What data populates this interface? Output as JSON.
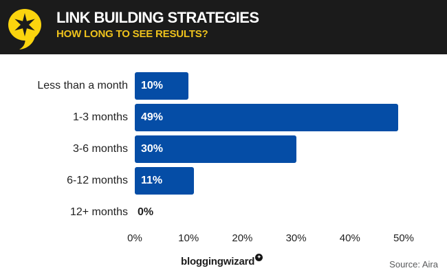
{
  "header": {
    "title": "LINK BUILDING STRATEGIES",
    "subtitle": "HOW LONG TO SEE RESULTS?"
  },
  "footer": {
    "wordmark": "bloggingwizard",
    "badge_icon": "✦",
    "source": "Source: Aira"
  },
  "icons": {
    "logo": "speech-bubble-starburst-logo",
    "badge": "star-badge"
  },
  "colors": {
    "header_bg": "#1b1b1b",
    "logo_yellow": "#fbd40e",
    "subtitle_yellow": "#eec21c",
    "bar_blue": "#054da6",
    "label_dark": "#1f1f1f",
    "value_white": "#ffffff",
    "source_gray": "#58595b",
    "background": "#ffffff"
  },
  "chart_data": {
    "type": "bar",
    "orientation": "horizontal",
    "title": "LINK BUILDING STRATEGIES",
    "subtitle": "HOW LONG TO SEE RESULTS?",
    "categories": [
      "Less than a month",
      "1-3 months",
      "3-6 months",
      "6-12 months",
      "12+ months"
    ],
    "values": [
      10,
      49,
      30,
      11,
      0
    ],
    "value_labels": [
      "10%",
      "49%",
      "30%",
      "11%",
      "0%"
    ],
    "xlabel": "",
    "ylabel": "",
    "xlim": [
      0,
      50
    ],
    "x_ticks": [
      0,
      10,
      20,
      30,
      40,
      50
    ],
    "x_tick_labels": [
      "0%",
      "10%",
      "20%",
      "30%",
      "40%",
      "50%"
    ],
    "grid": false,
    "legend": false,
    "source": "Source: Aira"
  }
}
